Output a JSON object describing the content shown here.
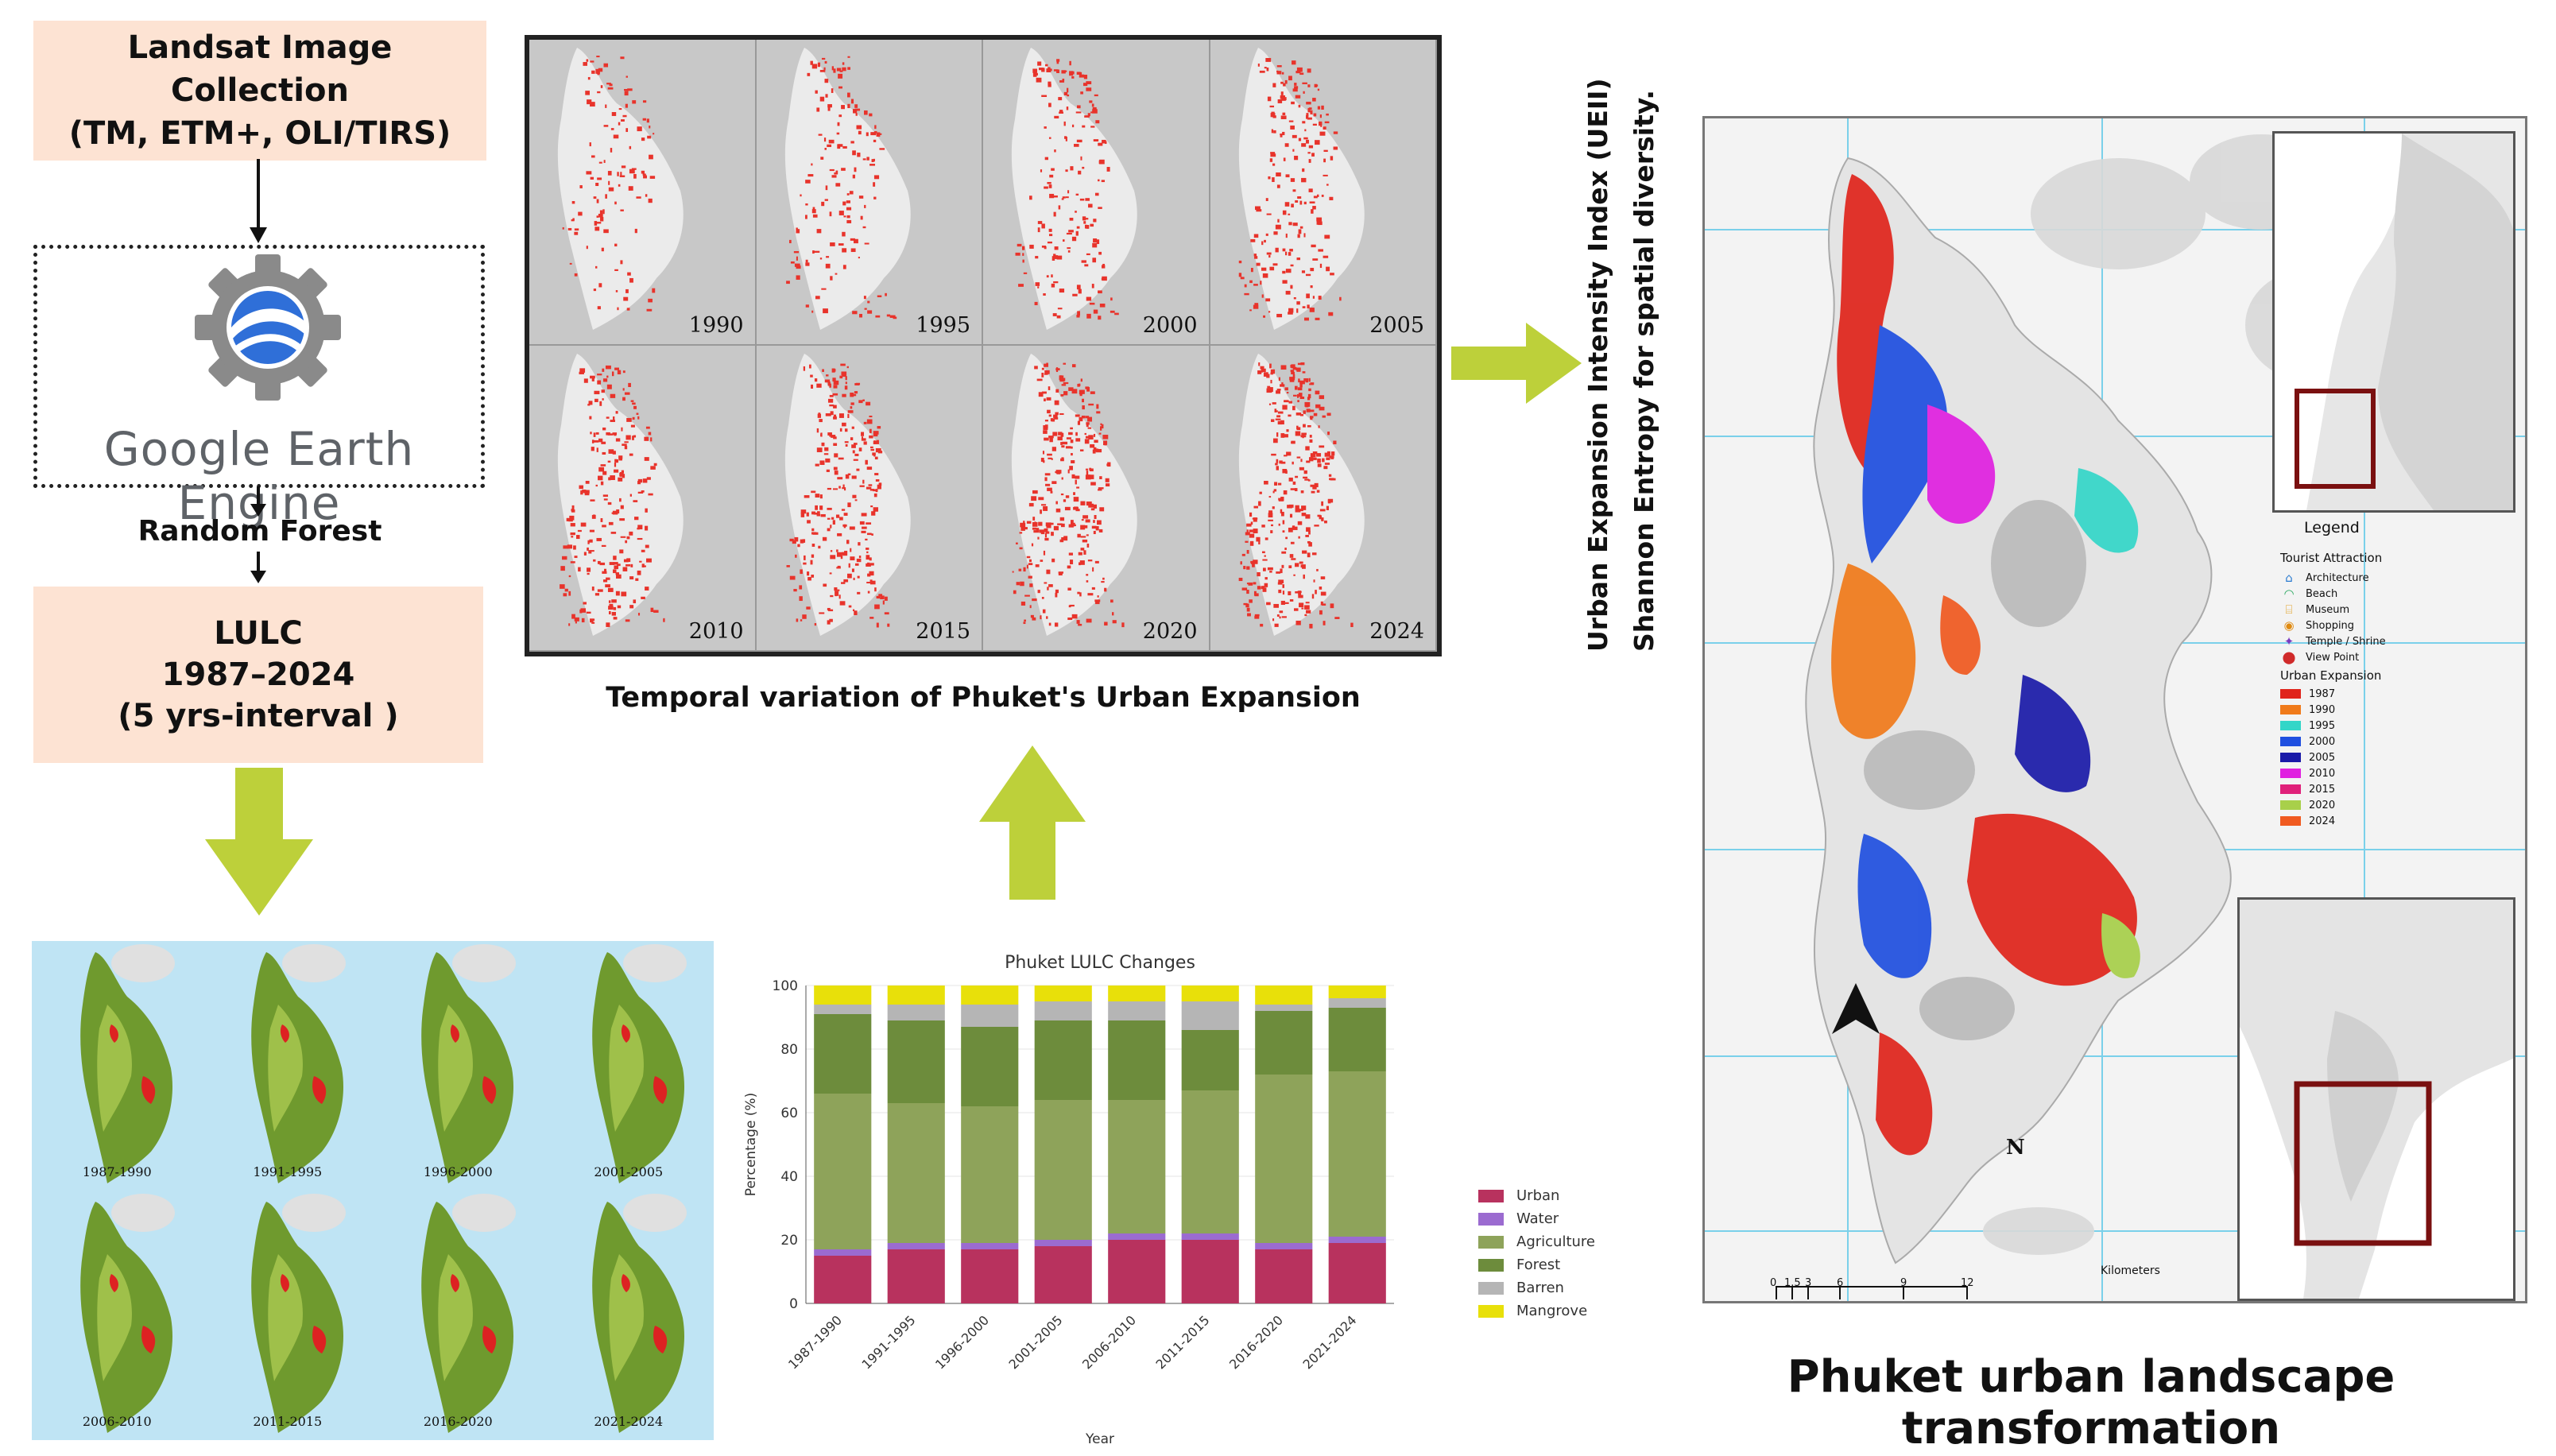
{
  "flow": {
    "collection_box": "Landsat Image Collection\n(TM, ETM+, OLI/TIRS)",
    "gee_logo": "Google Earth Engine",
    "classifier": "Random Forest",
    "lulc_box": "LULC\n1987–2024\n(5 yrs-interval )"
  },
  "urban_panel": {
    "years_top": [
      "1990",
      "1995",
      "2000",
      "2005"
    ],
    "years_bottom": [
      "2010",
      "2015",
      "2020",
      "2024"
    ],
    "caption": "Temporal variation of Phuket's Urban Expansion"
  },
  "lulc_maps": {
    "periods": [
      "1987-1990",
      "1991-1995",
      "1996-2000",
      "2001-2005",
      "2006-2010",
      "2011-2015",
      "2016-2020",
      "2021-2024"
    ]
  },
  "indices": {
    "line1": "Urban Expansion Intensity Index (UEII)",
    "line2": "Shannon Entropy for spatial diversity."
  },
  "right_map": {
    "legend_title": "Legend",
    "attraction_title": "Tourist Attraction",
    "attractions": [
      "Architecture",
      "Beach",
      "Museum",
      "Shopping",
      "Temple / Shrine",
      "View Point"
    ],
    "expansion_title": "Urban Expansion",
    "expansion_years": [
      "1987",
      "1990",
      "1995",
      "2000",
      "2005",
      "2010",
      "2015",
      "2020",
      "2024"
    ],
    "expansion_colors": [
      "#e0241b",
      "#f07a1a",
      "#33d6c8",
      "#1f4fe0",
      "#1a1aa8",
      "#e020e0",
      "#e0207a",
      "#a8d04a",
      "#f05a20"
    ],
    "north": "N",
    "scale_ticks": [
      "0",
      "1.5",
      "3",
      "6",
      "9",
      "12"
    ],
    "scale_unit": "Kilometers",
    "caption": "Phuket urban landscape transformation"
  },
  "chart_data": {
    "type": "bar",
    "stacked": true,
    "title": "Phuket LULC Changes",
    "xlabel": "Year",
    "ylabel": "Percentage (%)",
    "ylim": [
      0,
      100
    ],
    "yticks": [
      0,
      20,
      40,
      60,
      80,
      100
    ],
    "categories": [
      "1987-1990",
      "1991-1995",
      "1996-2000",
      "2001-2005",
      "2006-2010",
      "2011-2015",
      "2016-2020",
      "2021-2024"
    ],
    "series": [
      {
        "name": "Urban",
        "color": "#b8325e",
        "values": [
          15,
          17,
          17,
          18,
          20,
          20,
          17,
          19
        ]
      },
      {
        "name": "Water",
        "color": "#9b6bd0",
        "values": [
          2,
          2,
          2,
          2,
          2,
          2,
          2,
          2
        ]
      },
      {
        "name": "Agriculture",
        "color": "#8ea35a",
        "values": [
          49,
          44,
          43,
          44,
          42,
          45,
          53,
          52
        ]
      },
      {
        "name": "Forest",
        "color": "#6d8c3c",
        "values": [
          25,
          26,
          25,
          25,
          25,
          19,
          20,
          20
        ]
      },
      {
        "name": "Barren",
        "color": "#b5b5b5",
        "values": [
          3,
          5,
          7,
          6,
          6,
          9,
          2,
          3
        ]
      },
      {
        "name": "Mangrove",
        "color": "#e8e00a",
        "values": [
          6,
          6,
          6,
          5,
          5,
          5,
          6,
          4
        ]
      }
    ],
    "legend": "right"
  }
}
